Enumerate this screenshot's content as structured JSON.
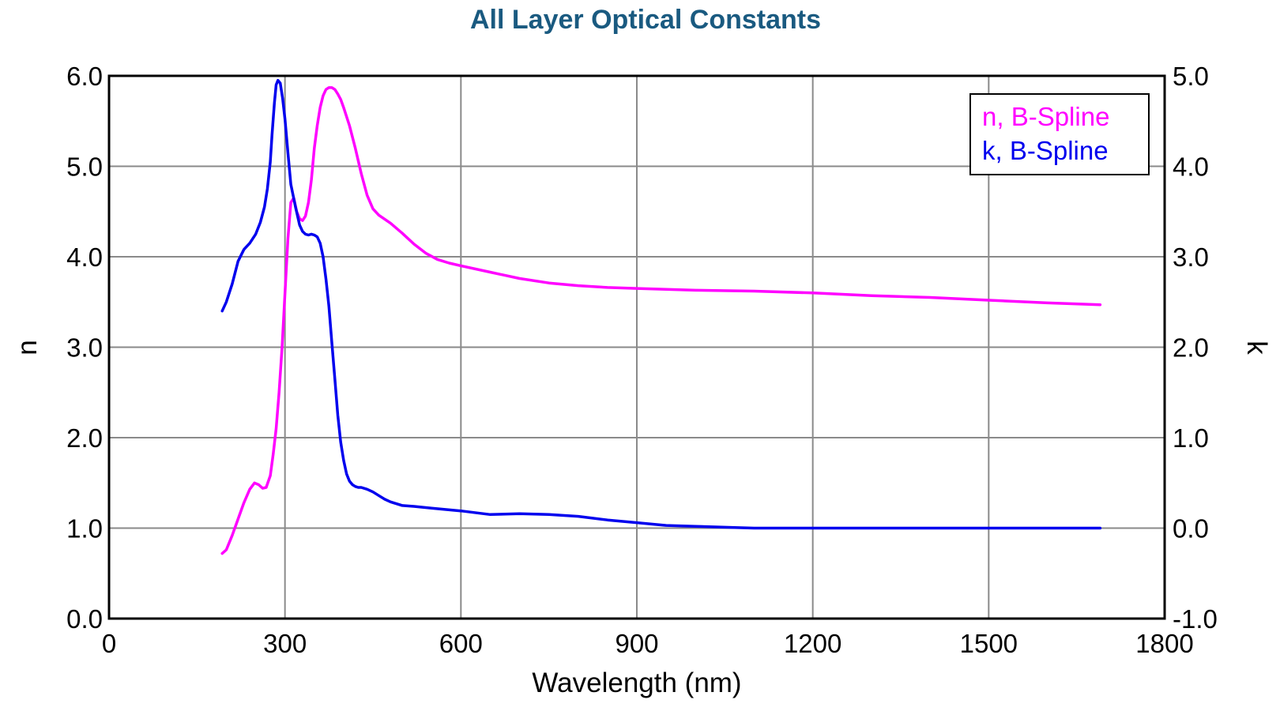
{
  "chart_data": {
    "type": "line",
    "title": "All Layer Optical Constants",
    "xlabel": "Wavelength (nm)",
    "ylabel_left": "n",
    "ylabel_right": "k",
    "xlim": [
      0,
      1800
    ],
    "ylim_left": [
      0,
      6
    ],
    "ylim_right": [
      -1,
      5
    ],
    "x_ticks": [
      0,
      300,
      600,
      900,
      1200,
      1500,
      1800
    ],
    "x_tick_labels": [
      "0",
      "300",
      "600",
      "900",
      "1200",
      "1500",
      "1800"
    ],
    "y_left_ticks": [
      0,
      1,
      2,
      3,
      4,
      5,
      6
    ],
    "y_left_tick_labels": [
      "0.0",
      "1.0",
      "2.0",
      "3.0",
      "4.0",
      "5.0",
      "6.0"
    ],
    "y_right_ticks": [
      -1,
      0,
      1,
      2,
      3,
      4,
      5
    ],
    "y_right_tick_labels": [
      "-1.0",
      "0.0",
      "1.0",
      "2.0",
      "3.0",
      "4.0",
      "5.0"
    ],
    "grid": true,
    "legend_position": "top-right",
    "series": [
      {
        "name": "n, B-Spline",
        "axis": "left",
        "color": "#ff00ff",
        "x": [
          193,
          200,
          210,
          220,
          230,
          240,
          248,
          255,
          262,
          268,
          275,
          280,
          285,
          290,
          295,
          300,
          305,
          310,
          315,
          320,
          325,
          330,
          335,
          340,
          345,
          350,
          355,
          360,
          365,
          370,
          375,
          380,
          385,
          390,
          395,
          400,
          410,
          420,
          430,
          440,
          450,
          460,
          480,
          500,
          520,
          540,
          560,
          580,
          600,
          650,
          700,
          750,
          800,
          850,
          900,
          1000,
          1100,
          1200,
          1300,
          1400,
          1500,
          1600,
          1690
        ],
        "y": [
          0.72,
          0.76,
          0.92,
          1.1,
          1.28,
          1.43,
          1.5,
          1.48,
          1.44,
          1.45,
          1.58,
          1.82,
          2.1,
          2.5,
          3.0,
          3.6,
          4.2,
          4.6,
          4.65,
          4.5,
          4.42,
          4.4,
          4.45,
          4.6,
          4.85,
          5.2,
          5.45,
          5.65,
          5.78,
          5.85,
          5.87,
          5.87,
          5.85,
          5.8,
          5.74,
          5.65,
          5.45,
          5.2,
          4.92,
          4.68,
          4.53,
          4.46,
          4.37,
          4.26,
          4.14,
          4.04,
          3.97,
          3.93,
          3.9,
          3.83,
          3.76,
          3.71,
          3.68,
          3.66,
          3.65,
          3.63,
          3.62,
          3.6,
          3.57,
          3.55,
          3.52,
          3.49,
          3.47
        ]
      },
      {
        "name": "k, B-Spline",
        "axis": "right",
        "color": "#0000ee",
        "x": [
          193,
          200,
          210,
          220,
          230,
          240,
          250,
          258,
          265,
          270,
          275,
          278,
          282,
          285,
          288,
          292,
          296,
          300,
          305,
          310,
          318,
          325,
          330,
          335,
          340,
          345,
          350,
          355,
          360,
          365,
          370,
          375,
          380,
          385,
          390,
          395,
          400,
          405,
          410,
          415,
          420,
          425,
          430,
          440,
          450,
          460,
          470,
          480,
          500,
          520,
          550,
          600,
          650,
          700,
          750,
          800,
          850,
          900,
          950,
          1000,
          1050,
          1100,
          1200,
          1300,
          1400,
          1500,
          1600,
          1690
        ],
        "y": [
          2.4,
          2.5,
          2.7,
          2.95,
          3.08,
          3.15,
          3.25,
          3.38,
          3.55,
          3.75,
          4.05,
          4.35,
          4.7,
          4.9,
          4.95,
          4.92,
          4.75,
          4.52,
          4.15,
          3.8,
          3.55,
          3.35,
          3.28,
          3.25,
          3.24,
          3.25,
          3.24,
          3.22,
          3.15,
          3.0,
          2.75,
          2.45,
          2.05,
          1.65,
          1.25,
          0.95,
          0.75,
          0.6,
          0.52,
          0.48,
          0.46,
          0.45,
          0.45,
          0.43,
          0.4,
          0.36,
          0.32,
          0.29,
          0.25,
          0.24,
          0.22,
          0.19,
          0.15,
          0.16,
          0.15,
          0.13,
          0.09,
          0.06,
          0.03,
          0.02,
          0.01,
          0.0,
          0.0,
          0.0,
          0.0,
          0.0,
          0.0,
          0.0
        ]
      }
    ]
  }
}
